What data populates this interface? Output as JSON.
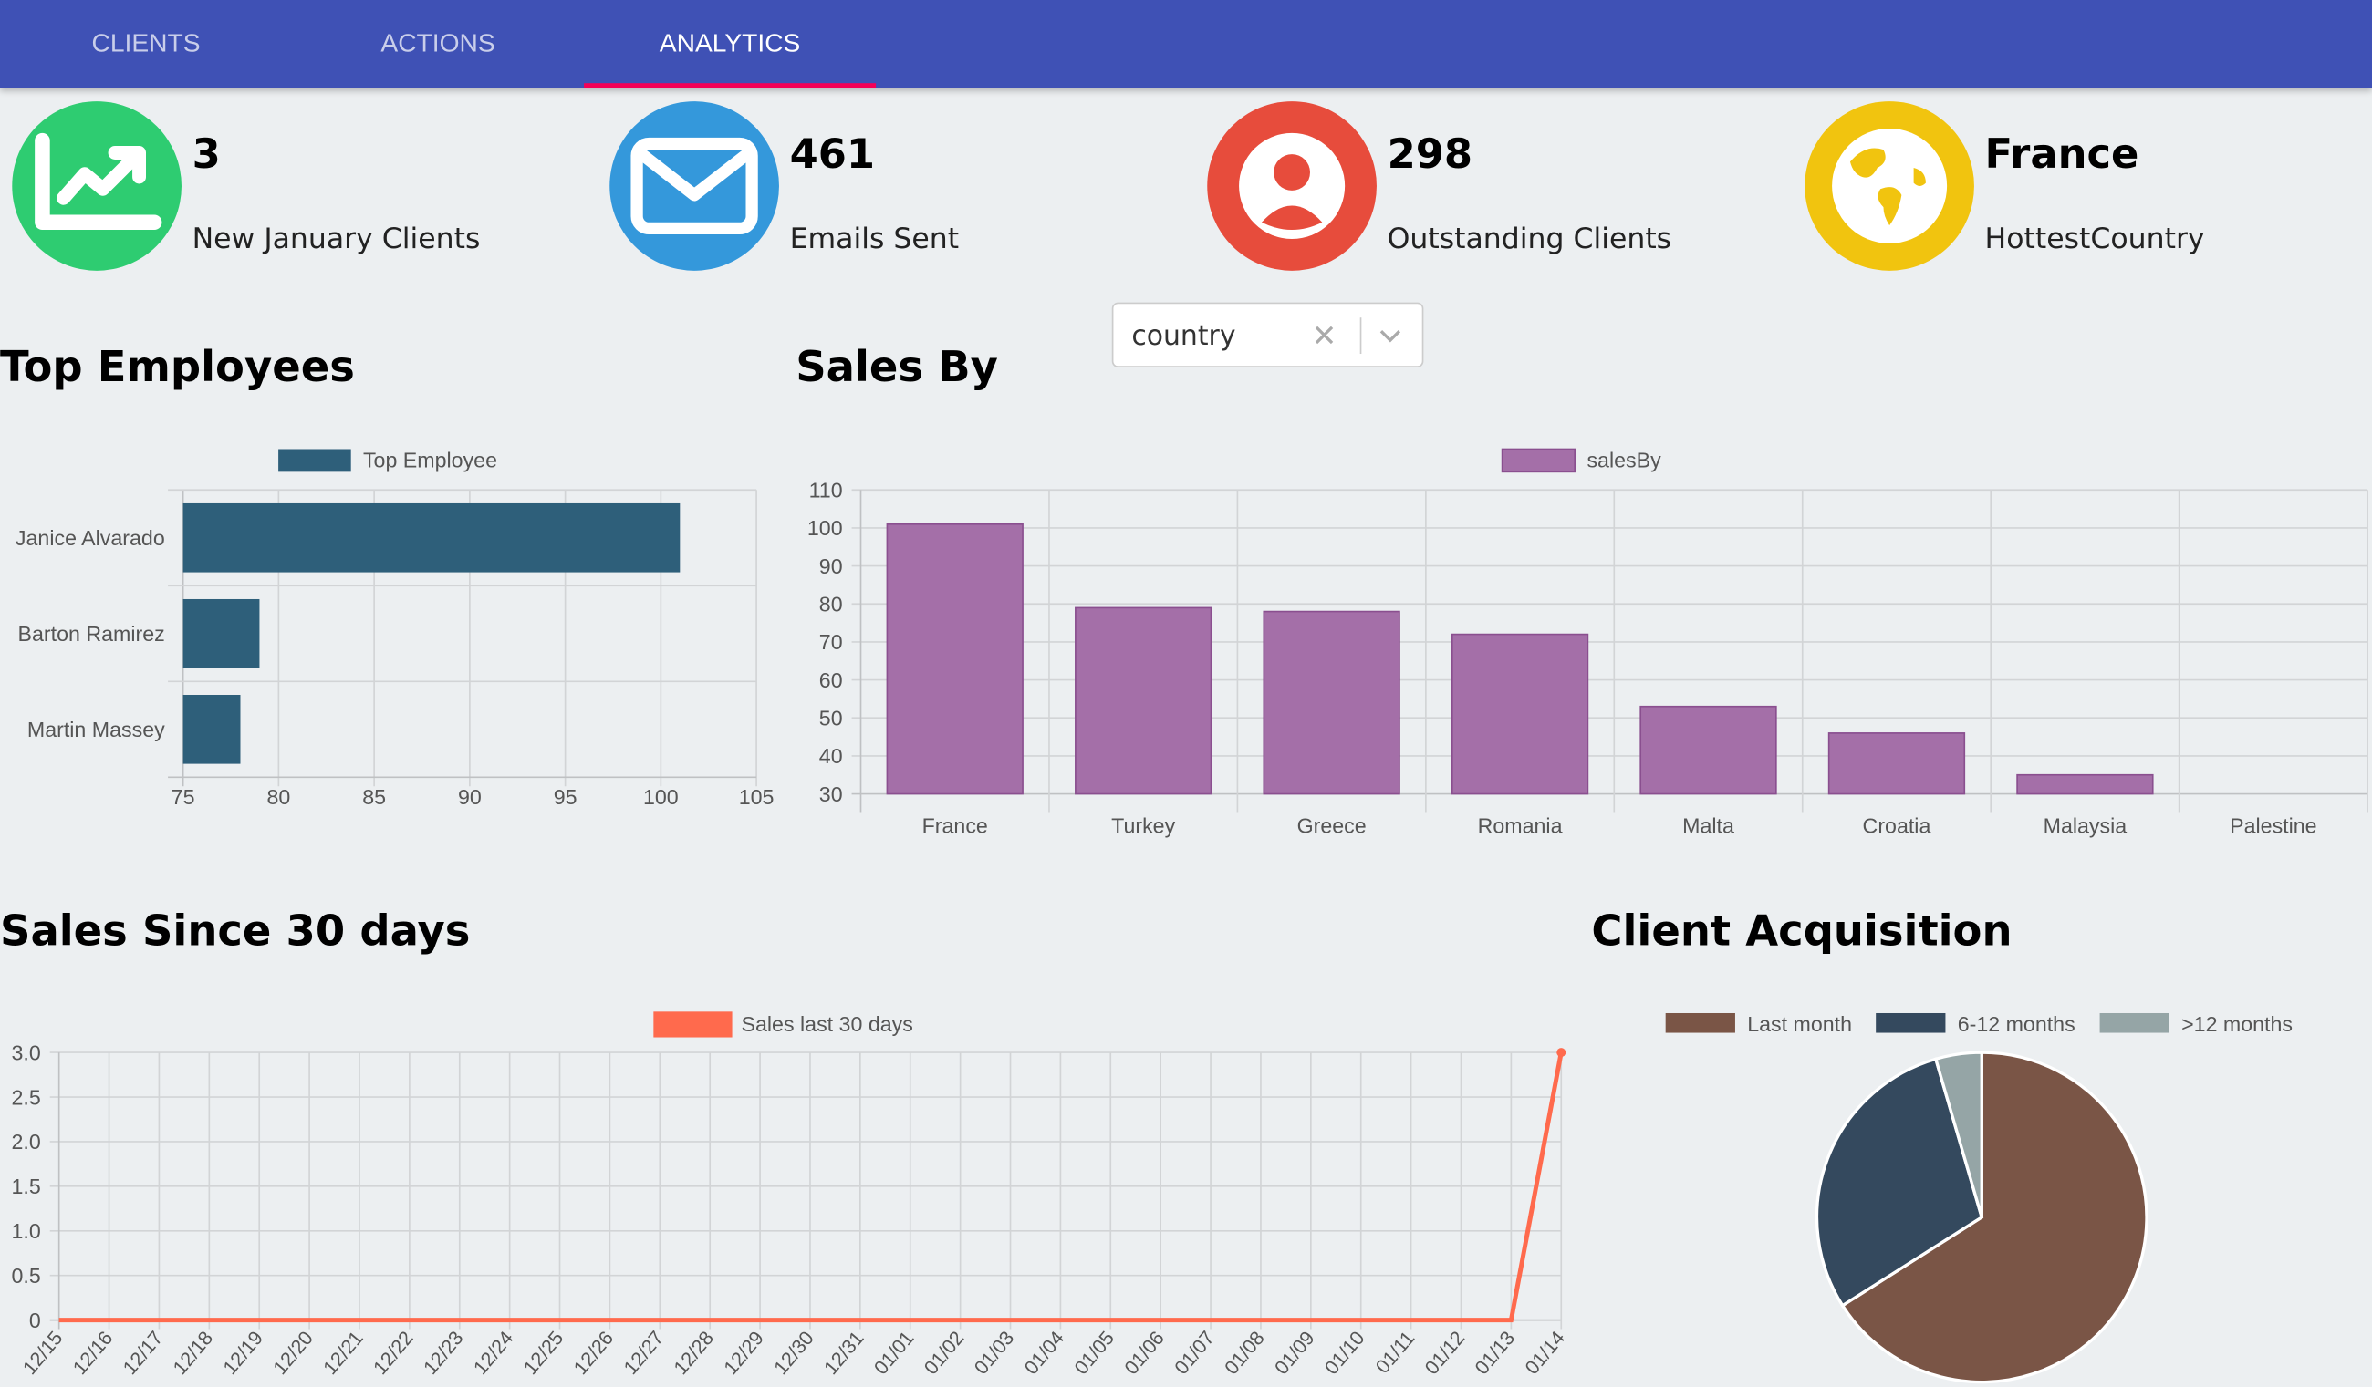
{
  "nav": {
    "tabs": [
      {
        "label": "CLIENTS"
      },
      {
        "label": "ACTIONS"
      },
      {
        "label": "ANALYTICS"
      }
    ],
    "active_tab": "ANALYTICS"
  },
  "stats": [
    {
      "value": "3",
      "label": "New January Clients",
      "icon": "trending-up-icon",
      "color": "#2ecc71"
    },
    {
      "value": "461",
      "label": "Emails Sent",
      "icon": "mail-icon",
      "color": "#3498db"
    },
    {
      "value": "298",
      "label": "Outstanding Clients",
      "icon": "user-circle-icon",
      "color": "#e74c3c"
    },
    {
      "value": "France",
      "label": "HottestCountry",
      "icon": "globe-icon",
      "color": "#f1c40f"
    }
  ],
  "sections": {
    "top_employees": "Top Employees",
    "sales_by": "Sales By",
    "sales_30": "Sales Since 30 days",
    "acquisition": "Client Acquisition"
  },
  "sales_by_select": {
    "value": "country"
  },
  "chart_data": [
    {
      "type": "bar",
      "orientation": "horizontal",
      "categories": [
        "Janice Alvarado",
        "Barton Ramirez",
        "Martin Massey"
      ],
      "series": [
        {
          "name": "Top Employee",
          "values": [
            101,
            79,
            78
          ],
          "color": "#2e5f7a"
        }
      ],
      "xlim": [
        75,
        105
      ],
      "xticks": [
        75,
        80,
        85,
        90,
        95,
        100,
        105
      ],
      "grid": true,
      "legend": "top"
    },
    {
      "type": "bar",
      "categories": [
        "France",
        "Turkey",
        "Greece",
        "Romania",
        "Malta",
        "Croatia",
        "Malaysia",
        "Palestine"
      ],
      "series": [
        {
          "name": "salesBy",
          "values": [
            101,
            79,
            78,
            72,
            53,
            46,
            35,
            30
          ],
          "color": "#a46fa8"
        }
      ],
      "ylim": [
        30,
        110
      ],
      "yticks": [
        30,
        40,
        50,
        60,
        70,
        80,
        90,
        100,
        110
      ],
      "grid": true,
      "legend": "top"
    },
    {
      "type": "line",
      "x": [
        "12/15",
        "12/16",
        "12/17",
        "12/18",
        "12/19",
        "12/20",
        "12/21",
        "12/22",
        "12/23",
        "12/24",
        "12/25",
        "12/26",
        "12/27",
        "12/28",
        "12/29",
        "12/30",
        "12/31",
        "01/01",
        "01/02",
        "01/03",
        "01/04",
        "01/05",
        "01/06",
        "01/07",
        "01/08",
        "01/09",
        "01/10",
        "01/11",
        "01/12",
        "01/13",
        "01/14"
      ],
      "series": [
        {
          "name": "Sales last 30 days",
          "values": [
            0,
            0,
            0,
            0,
            0,
            0,
            0,
            0,
            0,
            0,
            0,
            0,
            0,
            0,
            0,
            0,
            0,
            0,
            0,
            0,
            0,
            0,
            0,
            0,
            0,
            0,
            0,
            0,
            0,
            0,
            3
          ],
          "color": "#ff6a4d"
        }
      ],
      "ylim": [
        0,
        3
      ],
      "yticks": [
        "0",
        "0.5",
        "1.0",
        "1.5",
        "2.0",
        "2.5",
        "3.0"
      ],
      "grid": true,
      "legend": "top"
    },
    {
      "type": "pie",
      "categories": [
        "Last month",
        "6-12 months",
        ">12 months"
      ],
      "values": [
        66,
        29.5,
        4.5
      ],
      "colors": [
        "#7a5546",
        "#34495e",
        "#95a5a6"
      ],
      "legend": "top"
    }
  ]
}
